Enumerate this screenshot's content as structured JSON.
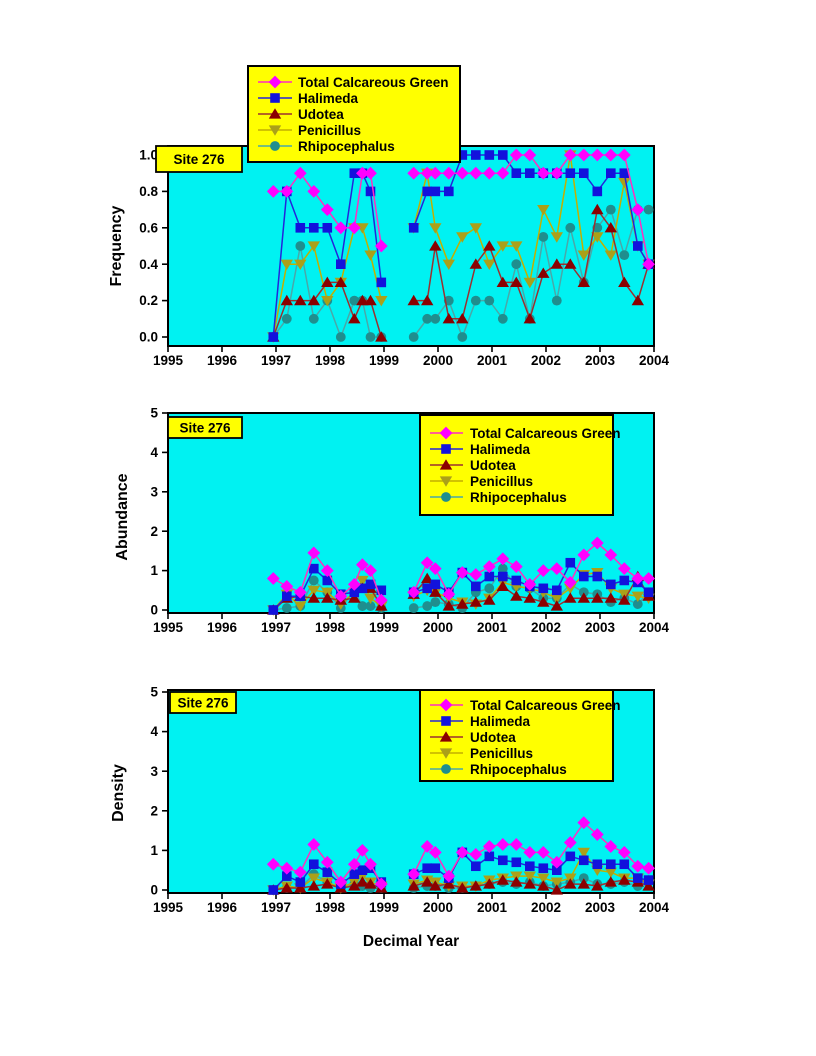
{
  "site_label": "Site 276",
  "x_axis": {
    "label": "Decimal Year",
    "min": 1995,
    "max": 2004
  },
  "x_tick_labels": [
    "1995",
    "1996",
    "1997",
    "1998",
    "1999",
    "2000",
    "2001",
    "2002",
    "2003",
    "2004"
  ],
  "colors": {
    "page_bg": "#FFFFFF",
    "plot_bg": "#00F2F2",
    "legend_bg": "#FFFF00",
    "frame": "#000000",
    "text": "#000000"
  },
  "series_meta": [
    {
      "name": "Total Calcareous Green",
      "marker": "diamond",
      "color": "#FF00FF",
      "line_color": "#FF2EC0"
    },
    {
      "name": "Halimeda",
      "marker": "square",
      "color": "#1212DC",
      "line_color": "#2424DC"
    },
    {
      "name": "Udotea",
      "marker": "triangle-up",
      "color": "#8B0000",
      "line_color": "#9B3030"
    },
    {
      "name": "Penicillus",
      "marker": "triangle-down",
      "color": "#ABA019",
      "line_color": "#C3AF00"
    },
    {
      "name": "Rhipocephalus",
      "marker": "circle",
      "color": "#1F8E8E",
      "line_color": "#4AA8A8"
    }
  ],
  "chart_data": [
    {
      "type": "line",
      "title": "Site 276",
      "ylabel": "Frequency",
      "xlabel": "",
      "xlim": [
        1995,
        2004
      ],
      "ylim": [
        0,
        1.0
      ],
      "yticks": [
        0.0,
        0.2,
        0.4,
        0.6,
        0.8,
        1.0
      ],
      "ytick_labels": [
        "0.0",
        "0.2",
        "0.4",
        "0.6",
        "0.8",
        "1.0"
      ],
      "grid": false,
      "legend_position": "above-plot-left",
      "x": [
        1996.95,
        1997.2,
        1997.45,
        1997.7,
        1997.95,
        1998.2,
        1998.45,
        1998.6,
        1998.75,
        1998.95,
        1999.55,
        1999.8,
        1999.95,
        2000.2,
        2000.45,
        2000.7,
        2000.95,
        2001.2,
        2001.45,
        2001.7,
        2001.95,
        2002.2,
        2002.45,
        2002.7,
        2002.95,
        2003.2,
        2003.45,
        2003.7,
        2003.9
      ],
      "series": [
        {
          "name": "Total Calcareous Green",
          "values": [
            0.8,
            0.8,
            0.9,
            0.8,
            0.7,
            0.6,
            0.6,
            0.9,
            0.9,
            0.5,
            0.9,
            0.9,
            0.9,
            0.9,
            0.9,
            0.9,
            0.9,
            0.9,
            1.0,
            1.0,
            0.9,
            0.9,
            1.0,
            1.0,
            1.0,
            1.0,
            1.0,
            0.7,
            0.4
          ]
        },
        {
          "name": "Halimeda",
          "values": [
            0.0,
            0.8,
            0.6,
            0.6,
            0.6,
            0.4,
            0.9,
            0.9,
            0.8,
            0.3,
            0.6,
            0.8,
            0.8,
            0.8,
            1.0,
            1.0,
            1.0,
            1.0,
            0.9,
            0.9,
            0.9,
            0.9,
            0.9,
            0.9,
            0.8,
            0.9,
            0.9,
            0.5,
            0.4
          ]
        },
        {
          "name": "Udotea",
          "values": [
            0.0,
            0.2,
            0.2,
            0.2,
            0.3,
            0.3,
            0.1,
            0.2,
            0.2,
            0.0,
            0.2,
            0.2,
            0.5,
            0.1,
            0.1,
            0.4,
            0.5,
            0.3,
            0.3,
            0.1,
            0.35,
            0.4,
            0.4,
            0.3,
            0.7,
            0.6,
            0.3,
            0.2,
            0.4
          ]
        },
        {
          "name": "Penicillus",
          "values": [
            0.0,
            0.4,
            0.4,
            0.5,
            0.2,
            0.3,
            0.6,
            0.6,
            0.45,
            0.2,
            0.6,
            0.9,
            0.6,
            0.4,
            0.55,
            0.6,
            0.4,
            0.5,
            0.5,
            0.3,
            0.7,
            0.55,
            1.0,
            0.45,
            0.55,
            0.45,
            0.85,
            0.5,
            0.4
          ]
        },
        {
          "name": "Rhipocephalus",
          "values": [
            0.0,
            0.1,
            0.5,
            0.1,
            0.2,
            0.0,
            0.2,
            0.2,
            0.0,
            0.0,
            0.0,
            0.1,
            0.1,
            0.2,
            0.0,
            0.2,
            0.2,
            0.1,
            0.4,
            0.1,
            0.55,
            0.2,
            0.6,
            0.3,
            0.6,
            0.7,
            0.45,
            0.7,
            0.7
          ]
        }
      ]
    },
    {
      "type": "line",
      "title": "Site 276",
      "ylabel": "Abundance",
      "xlabel": "",
      "xlim": [
        1995,
        2004
      ],
      "ylim": [
        0,
        5
      ],
      "yticks": [
        0,
        1,
        2,
        3,
        4,
        5
      ],
      "ytick_labels": [
        "0",
        "1",
        "2",
        "3",
        "4",
        "5"
      ],
      "grid": false,
      "legend_position": "inside-top-right",
      "x": [
        1996.95,
        1997.2,
        1997.45,
        1997.7,
        1997.95,
        1998.2,
        1998.45,
        1998.6,
        1998.75,
        1998.95,
        1999.55,
        1999.8,
        1999.95,
        2000.2,
        2000.45,
        2000.7,
        2000.95,
        2001.2,
        2001.45,
        2001.7,
        2001.95,
        2002.2,
        2002.45,
        2002.7,
        2002.95,
        2003.2,
        2003.45,
        2003.7,
        2003.9
      ],
      "series": [
        {
          "name": "Total Calcareous Green",
          "values": [
            0.8,
            0.6,
            0.45,
            1.45,
            1.0,
            0.35,
            0.65,
            1.15,
            1.0,
            0.25,
            0.45,
            1.2,
            1.05,
            0.4,
            0.95,
            0.9,
            1.1,
            1.3,
            1.1,
            0.65,
            1.0,
            1.05,
            0.7,
            1.4,
            1.7,
            1.4,
            1.05,
            0.8,
            0.8
          ]
        },
        {
          "name": "Halimeda",
          "values": [
            0.0,
            0.35,
            0.35,
            1.05,
            0.75,
            0.4,
            0.45,
            0.55,
            0.65,
            0.5,
            0.45,
            0.55,
            0.65,
            0.45,
            0.95,
            0.6,
            0.85,
            0.85,
            0.75,
            0.6,
            0.55,
            0.5,
            1.2,
            0.85,
            0.85,
            0.65,
            0.75,
            0.7,
            0.45
          ]
        },
        {
          "name": "Udotea",
          "values": [
            0.0,
            0.3,
            0.35,
            0.3,
            0.3,
            0.25,
            0.3,
            0.55,
            0.55,
            0.1,
            0.4,
            0.8,
            0.45,
            0.1,
            0.15,
            0.2,
            0.25,
            0.6,
            0.35,
            0.3,
            0.2,
            0.1,
            0.3,
            0.3,
            0.3,
            0.3,
            0.25,
            0.85,
            0.35
          ]
        },
        {
          "name": "Penicillus",
          "values": [
            0.0,
            0.4,
            0.1,
            0.5,
            0.45,
            0.15,
            0.45,
            0.75,
            0.3,
            0.1,
            0.35,
            0.5,
            0.45,
            0.3,
            0.2,
            0.15,
            0.3,
            0.7,
            0.6,
            0.55,
            0.45,
            0.3,
            0.55,
            0.9,
            0.95,
            0.55,
            0.4,
            0.35,
            0.3
          ]
        },
        {
          "name": "Rhipocephalus",
          "values": [
            0.0,
            0.05,
            0.1,
            0.75,
            0.45,
            0.05,
            0.5,
            0.1,
            0.1,
            0.05,
            0.05,
            0.1,
            0.2,
            0.15,
            0.05,
            0.45,
            0.55,
            1.05,
            0.6,
            0.55,
            0.3,
            0.3,
            0.65,
            0.45,
            0.4,
            0.2,
            0.3,
            0.15,
            0.45
          ]
        }
      ]
    },
    {
      "type": "line",
      "title": "Site 276",
      "ylabel": "Density",
      "xlabel": "Decimal Year",
      "xlim": [
        1995,
        2004
      ],
      "ylim": [
        0,
        5
      ],
      "yticks": [
        0,
        1,
        2,
        3,
        4,
        5
      ],
      "ytick_labels": [
        "0",
        "1",
        "2",
        "3",
        "4",
        "5"
      ],
      "grid": false,
      "legend_position": "inside-top-right",
      "x": [
        1996.95,
        1997.2,
        1997.45,
        1997.7,
        1997.95,
        1998.2,
        1998.45,
        1998.6,
        1998.75,
        1998.95,
        1999.55,
        1999.8,
        1999.95,
        2000.2,
        2000.45,
        2000.7,
        2000.95,
        2001.2,
        2001.45,
        2001.7,
        2001.95,
        2002.2,
        2002.45,
        2002.7,
        2002.95,
        2003.2,
        2003.45,
        2003.7,
        2003.9
      ],
      "series": [
        {
          "name": "Total Calcareous Green",
          "values": [
            0.65,
            0.55,
            0.45,
            1.15,
            0.7,
            0.2,
            0.65,
            1.0,
            0.65,
            0.15,
            0.4,
            1.1,
            0.95,
            0.35,
            0.95,
            0.9,
            1.1,
            1.15,
            1.15,
            0.95,
            0.95,
            0.7,
            1.2,
            1.7,
            1.4,
            1.1,
            0.95,
            0.6,
            0.55
          ]
        },
        {
          "name": "Halimeda",
          "values": [
            0.0,
            0.35,
            0.2,
            0.65,
            0.45,
            0.15,
            0.4,
            0.5,
            0.55,
            0.2,
            0.4,
            0.55,
            0.55,
            0.3,
            0.95,
            0.6,
            0.85,
            0.75,
            0.7,
            0.6,
            0.55,
            0.5,
            0.85,
            0.75,
            0.65,
            0.65,
            0.65,
            0.3,
            0.25
          ]
        },
        {
          "name": "Udotea",
          "values": [
            0.0,
            0.05,
            0.05,
            0.1,
            0.15,
            0.05,
            0.1,
            0.2,
            0.15,
            0.05,
            0.1,
            0.2,
            0.1,
            0.15,
            0.05,
            0.1,
            0.15,
            0.25,
            0.2,
            0.15,
            0.1,
            0.0,
            0.15,
            0.15,
            0.1,
            0.2,
            0.25,
            0.2,
            0.1
          ]
        },
        {
          "name": "Penicillus",
          "values": [
            0.0,
            0.1,
            0.05,
            0.3,
            0.2,
            0.05,
            0.2,
            0.35,
            0.2,
            0.1,
            0.15,
            0.25,
            0.2,
            0.1,
            0.1,
            0.1,
            0.25,
            0.3,
            0.35,
            0.35,
            0.3,
            0.2,
            0.3,
            0.95,
            0.5,
            0.45,
            0.3,
            0.3,
            0.15
          ]
        },
        {
          "name": "Rhipocephalus",
          "values": [
            0.0,
            0.05,
            0.05,
            0.4,
            0.2,
            0.05,
            0.15,
            0.1,
            0.05,
            0.05,
            0.05,
            0.1,
            0.1,
            0.05,
            0.05,
            0.1,
            0.15,
            0.2,
            0.15,
            0.2,
            0.1,
            0.15,
            0.2,
            0.3,
            0.15,
            0.15,
            0.2,
            0.1,
            0.25
          ]
        }
      ]
    }
  ]
}
